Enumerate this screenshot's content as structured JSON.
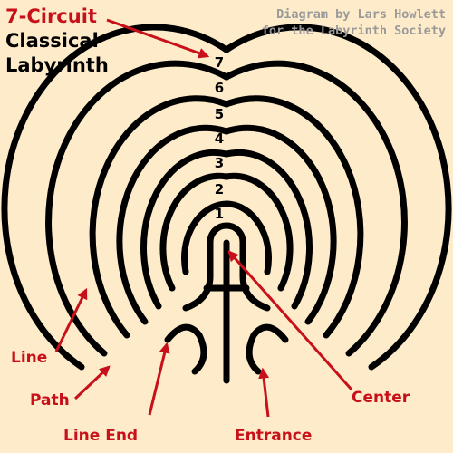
{
  "title": {
    "line1": "7-Circuit",
    "line2": "Classical",
    "line3": "Labyrinth"
  },
  "credit": {
    "line1": "Diagram by Lars Howlett",
    "line2": "for the Labyrinth Society"
  },
  "circuit_numbers": [
    "1",
    "2",
    "3",
    "4",
    "5",
    "6",
    "7"
  ],
  "labels": {
    "line": "Line",
    "path": "Path",
    "line_end": "Line End",
    "entrance": "Entrance",
    "center": "Center"
  },
  "colors": {
    "background": "#fdebc9",
    "ink": "#000000",
    "accent": "#c8101a",
    "credit": "#9a9a9a"
  }
}
